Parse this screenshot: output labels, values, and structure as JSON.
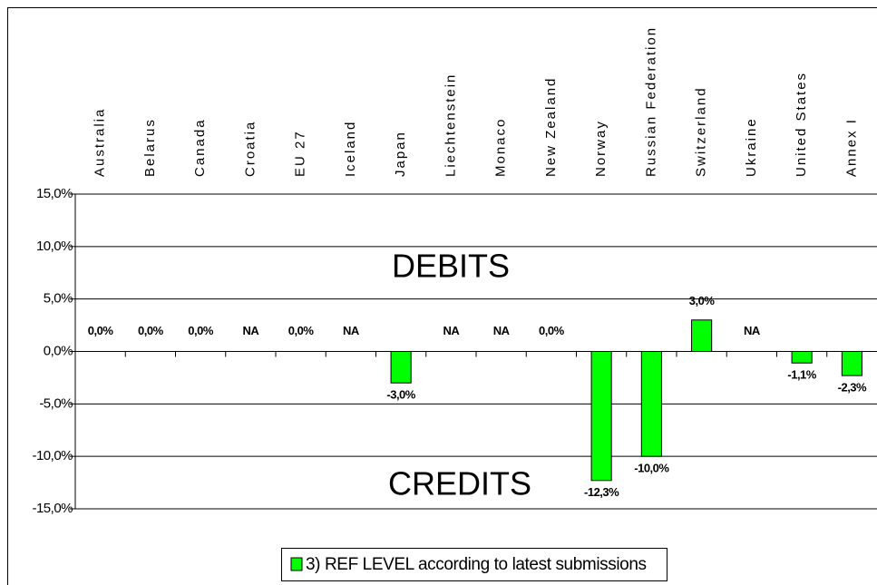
{
  "chart_data": {
    "type": "bar",
    "categories": [
      "Australia",
      "Belarus",
      "Canada",
      "Croatia",
      "EU 27",
      "Iceland",
      "Japan",
      "Liechtenstein",
      "Monaco",
      "New Zealand",
      "Norway",
      "Russian Federation",
      "Switzerland",
      "Ukraine",
      "United States",
      "Annex I"
    ],
    "series": [
      {
        "name": "3) REF LEVEL according to latest submissions",
        "color": "#00ff00",
        "values": [
          0,
          0,
          0,
          null,
          0,
          null,
          -3.0,
          null,
          null,
          0,
          -12.3,
          -10.0,
          3.0,
          null,
          -1.1,
          -2.3
        ],
        "value_labels": [
          "0,0%",
          "0,0%",
          "0,0%",
          "NA",
          "0,0%",
          "NA",
          "-3,0%",
          "NA",
          "NA",
          "0,0%",
          "-12,3%",
          "-10,0%",
          "3,0%",
          "NA",
          "-1,1%",
          "-2,3%"
        ]
      }
    ],
    "ylim": [
      -15,
      15
    ],
    "yticks": [
      {
        "value": 15,
        "label": "15,0%"
      },
      {
        "value": 10,
        "label": "10,0%"
      },
      {
        "value": 5,
        "label": "5,0%"
      },
      {
        "value": 0,
        "label": "0,0%"
      },
      {
        "value": -5,
        "label": "-5,0%"
      },
      {
        "value": -10,
        "label": "-10,0%"
      },
      {
        "value": -15,
        "label": "-15,0%"
      }
    ],
    "grid": true,
    "annotations": [
      "DEBITS",
      "CREDITS"
    ],
    "legend": "bottom"
  }
}
